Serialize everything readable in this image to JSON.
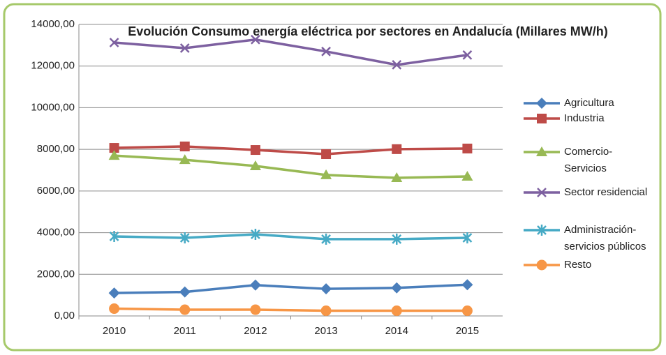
{
  "chart_data": {
    "type": "line",
    "title": "Evolución Consumo energía eléctrica por sectores en Andalucía (Millares MW/h)",
    "categories": [
      "2010",
      "2011",
      "2012",
      "2013",
      "2014",
      "2015"
    ],
    "ylim": [
      0,
      14000
    ],
    "yticks": [
      {
        "value": 0,
        "label": "0,00"
      },
      {
        "value": 2000,
        "label": "2000,00"
      },
      {
        "value": 4000,
        "label": "4000,00"
      },
      {
        "value": 6000,
        "label": "6000,00"
      },
      {
        "value": 8000,
        "label": "8000,00"
      },
      {
        "value": 10000,
        "label": "10000,00"
      },
      {
        "value": 12000,
        "label": "12000,00"
      },
      {
        "value": 14000,
        "label": "14000,00"
      }
    ],
    "grid": true,
    "legend": "right",
    "series": [
      {
        "name": "Agricultura",
        "color": "#4a7ebb",
        "marker": "diamond",
        "values": [
          1100,
          1150,
          1480,
          1300,
          1350,
          1500
        ]
      },
      {
        "name": "Industria",
        "color": "#be4b48",
        "marker": "square",
        "values": [
          8070,
          8140,
          7970,
          7770,
          8010,
          8040
        ]
      },
      {
        "name": "Comercio-Servicios",
        "color": "#98b954",
        "marker": "triangle",
        "values": [
          7700,
          7500,
          7200,
          6770,
          6630,
          6700
        ]
      },
      {
        "name": "Sector residencial",
        "color": "#7d60a0",
        "marker": "x",
        "values": [
          13130,
          12860,
          13270,
          12700,
          12060,
          12530
        ]
      },
      {
        "name": "Administración-servicios públicos",
        "color": "#46aac5",
        "marker": "star",
        "values": [
          3820,
          3750,
          3920,
          3690,
          3690,
          3750
        ]
      },
      {
        "name": "Resto",
        "color": "#f79646",
        "marker": "circle",
        "values": [
          350,
          300,
          300,
          250,
          250,
          250
        ]
      }
    ]
  }
}
